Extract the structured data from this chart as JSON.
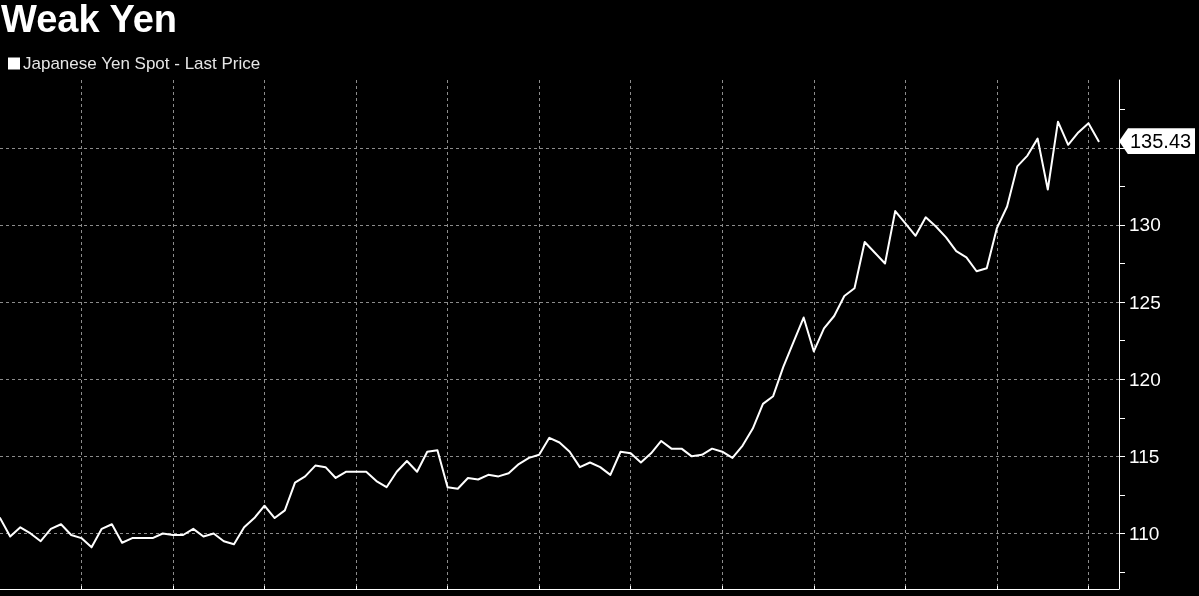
{
  "chart_data": {
    "type": "line",
    "title": "Weak Yen",
    "categories": [
      null,
      null,
      null,
      null,
      null,
      null,
      null,
      null,
      null,
      null,
      null,
      null,
      null,
      null,
      null,
      null,
      null,
      null,
      null,
      null,
      null,
      null,
      null,
      null,
      null,
      null,
      null,
      null,
      null,
      null,
      null,
      null,
      null,
      null,
      null,
      null,
      null,
      null,
      null,
      null,
      null,
      null,
      null,
      null,
      null,
      null,
      null,
      null,
      null,
      null,
      null,
      null,
      null,
      null,
      null,
      null,
      null,
      null,
      null,
      null,
      null,
      null,
      null,
      null,
      null,
      null,
      null,
      null,
      null,
      null,
      null,
      null,
      null,
      null,
      null,
      null,
      null,
      null,
      null,
      null,
      null,
      null,
      null,
      null,
      null,
      null,
      null,
      null,
      null,
      null,
      null,
      null,
      null,
      null,
      null,
      null,
      null,
      null,
      null,
      null,
      null,
      null,
      null,
      null,
      null,
      null,
      null,
      null,
      null
    ],
    "series": [
      {
        "name": "Japanese Yen Spot - Last Price",
        "color": "#ffffff",
        "values": [
          111.0,
          109.8,
          110.4,
          110.0,
          109.5,
          110.3,
          110.6,
          109.9,
          109.7,
          109.1,
          110.3,
          110.6,
          109.4,
          109.7,
          109.7,
          109.7,
          110.0,
          109.9,
          109.9,
          110.3,
          109.8,
          110.0,
          109.5,
          109.3,
          110.4,
          111.0,
          111.8,
          111.0,
          111.5,
          113.3,
          113.7,
          114.4,
          114.3,
          113.6,
          114.0,
          114.0,
          114.0,
          113.4,
          113.0,
          114.0,
          114.7,
          114.0,
          115.3,
          115.4,
          113.0,
          112.9,
          113.6,
          113.5,
          113.8,
          113.7,
          113.9,
          114.5,
          114.9,
          115.1,
          116.2,
          115.9,
          115.3,
          114.3,
          114.6,
          114.3,
          113.8,
          115.3,
          115.2,
          114.6,
          115.2,
          116.0,
          115.5,
          115.5,
          115.0,
          115.1,
          115.5,
          115.3,
          114.9,
          115.7,
          116.8,
          118.4,
          118.9,
          120.8,
          122.4,
          124.0,
          121.8,
          123.3,
          124.1,
          125.4,
          125.9,
          128.9,
          128.2,
          127.5,
          130.9,
          130.1,
          129.3,
          130.5,
          129.9,
          129.2,
          128.3,
          127.9,
          127.0,
          127.2,
          129.8,
          131.2,
          133.8,
          134.5,
          135.6,
          132.3,
          136.7,
          135.2,
          136.0,
          136.6,
          135.43
        ],
        "value_labels": [
          null,
          null,
          null,
          null,
          null,
          null,
          null,
          null,
          null,
          null,
          null,
          null,
          null,
          null,
          null,
          null,
          null,
          null,
          null,
          null,
          null,
          null,
          null,
          null,
          null,
          null,
          null,
          null,
          null,
          null,
          null,
          null,
          null,
          null,
          null,
          null,
          null,
          null,
          null,
          null,
          null,
          null,
          null,
          null,
          null,
          null,
          null,
          null,
          null,
          null,
          null,
          null,
          null,
          null,
          null,
          null,
          null,
          null,
          null,
          null,
          null,
          null,
          null,
          null,
          null,
          null,
          null,
          null,
          null,
          null,
          null,
          null,
          null,
          null,
          null,
          null,
          null,
          null,
          null,
          null,
          null,
          null,
          null,
          null,
          null,
          null,
          null,
          null,
          null,
          null,
          null,
          null,
          null,
          null,
          null,
          null,
          null,
          null,
          null,
          null,
          null,
          null,
          null,
          null,
          null,
          null,
          null,
          null,
          "135.43"
        ]
      }
    ],
    "ylim": [
      106.4,
      139.4
    ],
    "yticks": [
      {
        "value": 107.5,
        "label": null
      },
      110,
      {
        "value": 112.5,
        "label": null
      },
      115,
      {
        "value": 117.5,
        "label": null
      },
      120,
      {
        "value": 122.5,
        "label": null
      },
      125,
      {
        "value": 127.5,
        "label": null
      },
      130,
      {
        "value": 132.5,
        "label": null
      },
      {
        "value": 135,
        "label": null
      },
      {
        "value": 137.5,
        "label": null
      }
    ],
    "grid": true,
    "legend": "top left",
    "tick_labels": "y"
  }
}
